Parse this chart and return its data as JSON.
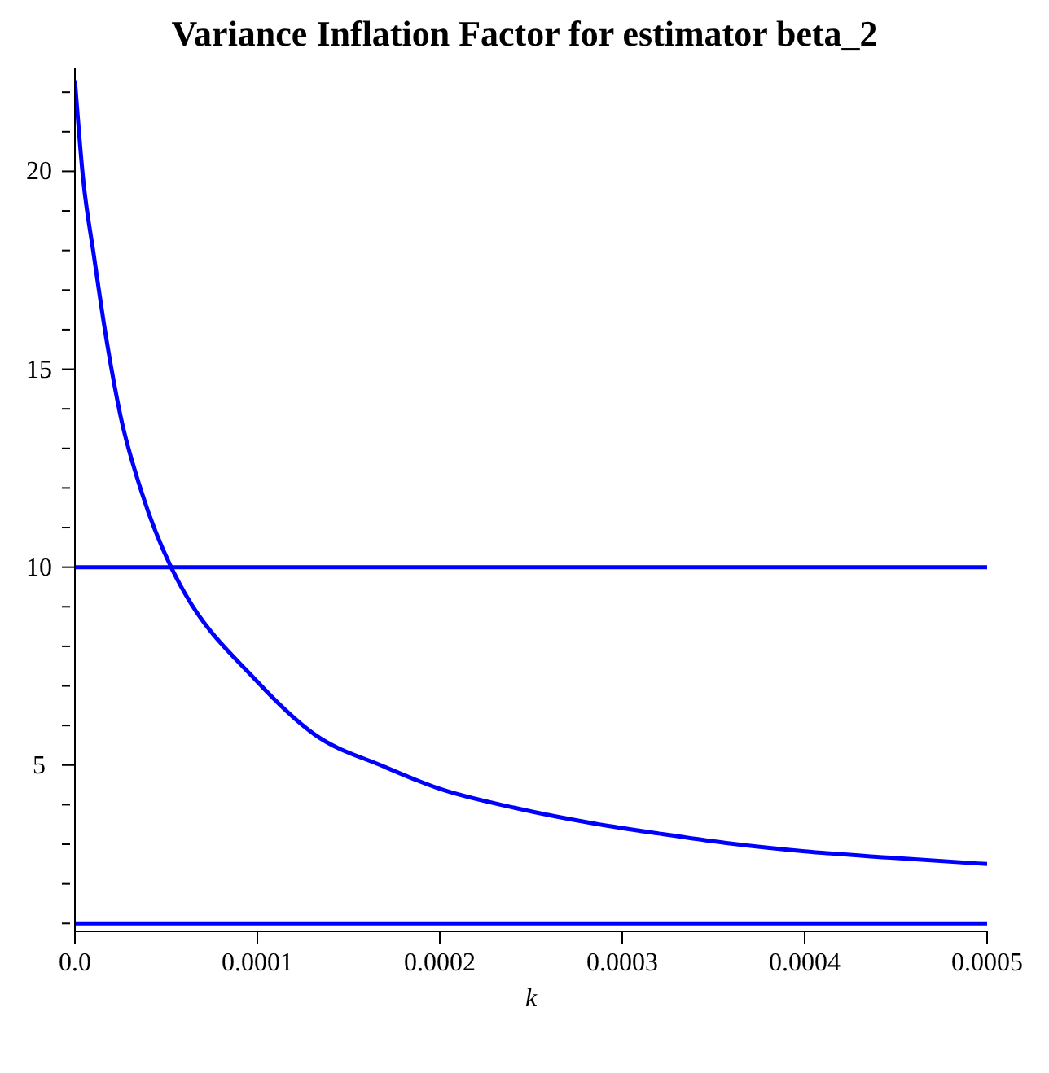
{
  "chart_data": {
    "type": "line",
    "title": "Variance Inflation Factor for estimator beta_2",
    "xlabel": "k",
    "x": [
      0,
      4.4e-06,
      1.03e-05,
      1.76e-05,
      2.49e-05,
      3.66e-05,
      5.27e-05,
      5.76e-05,
      9.91e-05,
      0.0001315,
      0.000169,
      0.0002,
      0.000241,
      0.000285,
      0.00032,
      0.000357,
      0.0004,
      0.000447,
      0.0005
    ],
    "series": [
      {
        "color": "#0000ff",
        "values": [
          22.3,
          19.85,
          17.9,
          15.66,
          13.84,
          11.89,
          10,
          9.56,
          7.15,
          5.77,
          4.97,
          4.4,
          3.92,
          3.52,
          3.27,
          3.03,
          2.82,
          2.66,
          2.5
        ]
      }
    ],
    "xlim": [
      0,
      0.0005
    ],
    "xticks": [
      {
        "value": 0,
        "label": "0.0"
      },
      {
        "value": 0.0001,
        "label": "0.0001"
      },
      {
        "value": 0.0002,
        "label": "0.0002"
      },
      {
        "value": 0.0003,
        "label": "0.0003"
      },
      {
        "value": 0.0004,
        "label": "0.0004"
      },
      {
        "value": 0.0005,
        "label": "0.0005"
      }
    ],
    "ylim": [
      0.8,
      22.6
    ],
    "yticks": [
      {
        "value": 1,
        "label": null
      },
      {
        "value": 2,
        "label": null
      },
      {
        "value": 3,
        "label": null
      },
      {
        "value": 4,
        "label": null
      },
      5,
      {
        "value": 6,
        "label": null
      },
      {
        "value": 7,
        "label": null
      },
      {
        "value": 8,
        "label": null
      },
      {
        "value": 9,
        "label": null
      },
      10,
      {
        "value": 11,
        "label": null
      },
      {
        "value": 12,
        "label": null
      },
      {
        "value": 13,
        "label": null
      },
      {
        "value": 14,
        "label": null
      },
      15,
      {
        "value": 16,
        "label": null
      },
      {
        "value": 17,
        "label": null
      },
      {
        "value": 18,
        "label": null
      },
      {
        "value": 19,
        "label": null
      },
      20,
      {
        "value": 21,
        "label": null
      },
      {
        "value": 22,
        "label": null
      }
    ],
    "ref_lines": [
      {
        "axis": "y",
        "value": 10,
        "color": "#0000ff"
      },
      {
        "axis": "y",
        "value": 1,
        "color": "#0000ff"
      }
    ],
    "grid": false,
    "legend": false,
    "marker": "none",
    "line_style": "solid"
  }
}
